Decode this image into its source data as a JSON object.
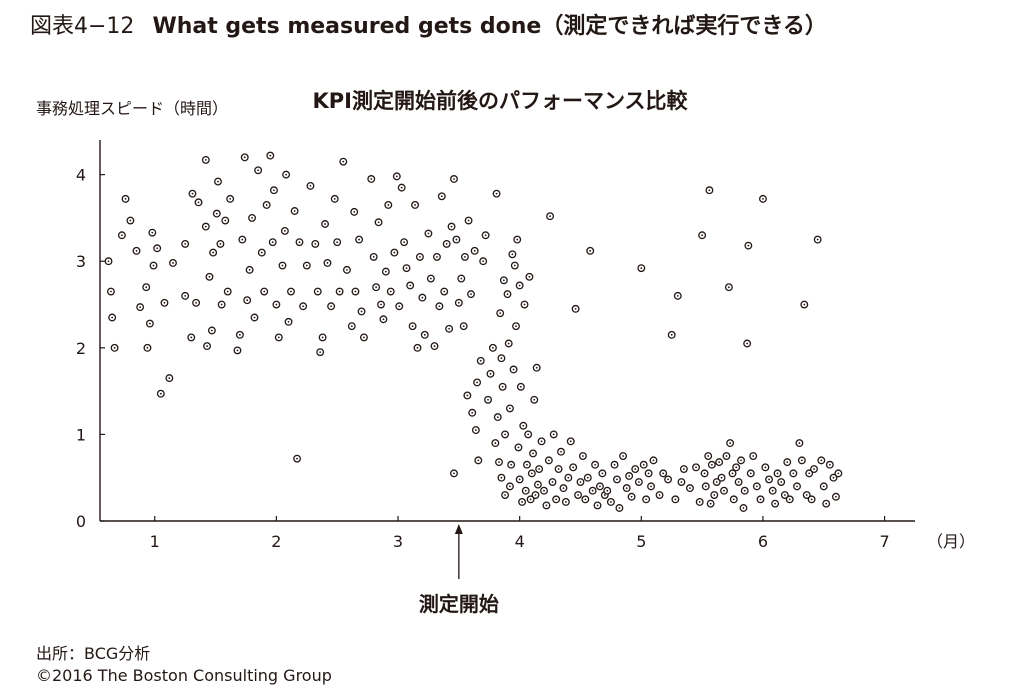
{
  "figure": {
    "number": "図表4−12",
    "title": "What gets measured gets done（測定できれば実行できる）"
  },
  "source": {
    "line1": "出所：BCG分析",
    "line2": "©2016 The Boston Consulting Group"
  },
  "chart_data": {
    "type": "scatter",
    "title": "KPI測定開始前後のパフォーマンス比較",
    "ylabel": "事務処理スピード（時間）",
    "xunit": "（月）",
    "xlim": [
      0.55,
      7.25
    ],
    "ylim": [
      0,
      4.4
    ],
    "xticks": [
      1,
      2,
      3,
      4,
      5,
      6,
      7
    ],
    "yticks": [
      0,
      1,
      2,
      3,
      4
    ],
    "grid": false,
    "annotation": {
      "label": "測定開始",
      "x": 3.5
    },
    "marker_color": "#231815",
    "points": [
      [
        0.62,
        3.0
      ],
      [
        0.64,
        2.65
      ],
      [
        0.65,
        2.35
      ],
      [
        0.67,
        2.0
      ],
      [
        0.73,
        3.3
      ],
      [
        0.76,
        3.72
      ],
      [
        0.8,
        3.47
      ],
      [
        0.85,
        3.12
      ],
      [
        0.88,
        2.47
      ],
      [
        0.93,
        2.7
      ],
      [
        0.94,
        2.0
      ],
      [
        0.96,
        2.28
      ],
      [
        0.98,
        3.33
      ],
      [
        0.99,
        2.95
      ],
      [
        1.02,
        3.15
      ],
      [
        1.05,
        1.47
      ],
      [
        1.08,
        2.52
      ],
      [
        1.12,
        1.65
      ],
      [
        1.15,
        2.98
      ],
      [
        1.25,
        3.2
      ],
      [
        1.25,
        2.6
      ],
      [
        1.3,
        2.12
      ],
      [
        1.31,
        3.78
      ],
      [
        1.34,
        2.52
      ],
      [
        1.36,
        3.68
      ],
      [
        1.42,
        4.17
      ],
      [
        1.42,
        3.4
      ],
      [
        1.43,
        2.02
      ],
      [
        1.45,
        2.82
      ],
      [
        1.47,
        2.2
      ],
      [
        1.48,
        3.1
      ],
      [
        1.51,
        3.55
      ],
      [
        1.52,
        3.92
      ],
      [
        1.54,
        3.2
      ],
      [
        1.55,
        2.5
      ],
      [
        1.58,
        3.47
      ],
      [
        1.6,
        2.65
      ],
      [
        1.62,
        3.72
      ],
      [
        1.68,
        1.97
      ],
      [
        1.7,
        2.15
      ],
      [
        1.72,
        3.25
      ],
      [
        1.74,
        4.2
      ],
      [
        1.76,
        2.55
      ],
      [
        1.78,
        2.9
      ],
      [
        1.8,
        3.5
      ],
      [
        1.82,
        2.35
      ],
      [
        1.85,
        4.05
      ],
      [
        1.88,
        3.1
      ],
      [
        1.9,
        2.65
      ],
      [
        1.92,
        3.65
      ],
      [
        1.95,
        4.22
      ],
      [
        1.97,
        3.22
      ],
      [
        1.98,
        3.82
      ],
      [
        2.0,
        2.5
      ],
      [
        2.02,
        2.12
      ],
      [
        2.05,
        2.95
      ],
      [
        2.07,
        3.35
      ],
      [
        2.08,
        4.0
      ],
      [
        2.1,
        2.3
      ],
      [
        2.12,
        2.65
      ],
      [
        2.15,
        3.58
      ],
      [
        2.17,
        0.72
      ],
      [
        2.19,
        3.22
      ],
      [
        2.22,
        2.48
      ],
      [
        2.25,
        2.95
      ],
      [
        2.28,
        3.87
      ],
      [
        2.32,
        3.2
      ],
      [
        2.34,
        2.65
      ],
      [
        2.36,
        1.95
      ],
      [
        2.38,
        2.12
      ],
      [
        2.4,
        3.43
      ],
      [
        2.42,
        2.98
      ],
      [
        2.45,
        2.48
      ],
      [
        2.48,
        3.72
      ],
      [
        2.5,
        3.22
      ],
      [
        2.52,
        2.65
      ],
      [
        2.55,
        4.15
      ],
      [
        2.58,
        2.9
      ],
      [
        2.62,
        2.25
      ],
      [
        2.64,
        3.57
      ],
      [
        2.65,
        2.65
      ],
      [
        2.68,
        3.25
      ],
      [
        2.7,
        2.42
      ],
      [
        2.72,
        2.12
      ],
      [
        2.78,
        3.95
      ],
      [
        2.8,
        3.05
      ],
      [
        2.82,
        2.7
      ],
      [
        2.84,
        3.45
      ],
      [
        2.86,
        2.5
      ],
      [
        2.88,
        2.33
      ],
      [
        2.9,
        2.88
      ],
      [
        2.92,
        3.65
      ],
      [
        2.94,
        2.65
      ],
      [
        2.97,
        3.1
      ],
      [
        2.99,
        3.98
      ],
      [
        3.01,
        2.48
      ],
      [
        3.03,
        3.85
      ],
      [
        3.05,
        3.22
      ],
      [
        3.07,
        2.92
      ],
      [
        3.1,
        2.72
      ],
      [
        3.12,
        2.25
      ],
      [
        3.14,
        3.65
      ],
      [
        3.16,
        2.0
      ],
      [
        3.18,
        3.05
      ],
      [
        3.2,
        2.58
      ],
      [
        3.22,
        2.15
      ],
      [
        3.25,
        3.32
      ],
      [
        3.27,
        2.8
      ],
      [
        3.3,
        2.02
      ],
      [
        3.32,
        3.05
      ],
      [
        3.34,
        2.48
      ],
      [
        3.36,
        3.75
      ],
      [
        3.38,
        2.65
      ],
      [
        3.4,
        3.2
      ],
      [
        3.42,
        2.22
      ],
      [
        3.44,
        3.4
      ],
      [
        3.46,
        3.95
      ],
      [
        3.48,
        3.25
      ],
      [
        3.5,
        2.52
      ],
      [
        3.52,
        2.8
      ],
      [
        3.54,
        2.25
      ],
      [
        3.46,
        0.55
      ],
      [
        3.55,
        3.05
      ],
      [
        3.57,
        1.45
      ],
      [
        3.58,
        3.47
      ],
      [
        3.6,
        2.62
      ],
      [
        3.61,
        1.25
      ],
      [
        3.63,
        3.12
      ],
      [
        3.64,
        1.05
      ],
      [
        3.65,
        1.6
      ],
      [
        3.66,
        0.7
      ],
      [
        3.68,
        1.85
      ],
      [
        3.7,
        3.0
      ],
      [
        3.72,
        3.3
      ],
      [
        3.74,
        1.4
      ],
      [
        3.76,
        1.7
      ],
      [
        3.78,
        2.0
      ],
      [
        3.8,
        0.9
      ],
      [
        3.81,
        3.78
      ],
      [
        3.82,
        1.2
      ],
      [
        3.83,
        0.68
      ],
      [
        3.84,
        2.4
      ],
      [
        3.85,
        1.88
      ],
      [
        3.85,
        0.5
      ],
      [
        3.86,
        1.55
      ],
      [
        3.87,
        2.78
      ],
      [
        3.88,
        0.3
      ],
      [
        3.88,
        1.0
      ],
      [
        3.9,
        2.62
      ],
      [
        3.91,
        2.05
      ],
      [
        3.92,
        0.4
      ],
      [
        3.92,
        1.3
      ],
      [
        3.93,
        0.65
      ],
      [
        3.94,
        3.08
      ],
      [
        3.95,
        1.75
      ],
      [
        3.96,
        2.95
      ],
      [
        3.97,
        2.25
      ],
      [
        3.98,
        3.25
      ],
      [
        3.99,
        0.85
      ],
      [
        4.0,
        2.72
      ],
      [
        4.0,
        0.48
      ],
      [
        4.01,
        1.55
      ],
      [
        4.02,
        0.22
      ],
      [
        4.03,
        1.1
      ],
      [
        4.04,
        2.5
      ],
      [
        4.05,
        0.35
      ],
      [
        4.06,
        0.65
      ],
      [
        4.07,
        1.0
      ],
      [
        4.08,
        2.82
      ],
      [
        4.09,
        0.25
      ],
      [
        4.1,
        0.55
      ],
      [
        4.11,
        0.78
      ],
      [
        4.12,
        1.4
      ],
      [
        4.13,
        0.3
      ],
      [
        4.14,
        1.77
      ],
      [
        4.15,
        0.42
      ],
      [
        4.16,
        0.6
      ],
      [
        4.18,
        0.92
      ],
      [
        4.2,
        0.35
      ],
      [
        4.22,
        0.18
      ],
      [
        4.24,
        0.7
      ],
      [
        4.25,
        3.52
      ],
      [
        4.27,
        0.45
      ],
      [
        4.28,
        1.0
      ],
      [
        4.3,
        0.25
      ],
      [
        4.32,
        0.6
      ],
      [
        4.34,
        0.8
      ],
      [
        4.36,
        0.38
      ],
      [
        4.38,
        0.22
      ],
      [
        4.4,
        0.5
      ],
      [
        4.42,
        0.92
      ],
      [
        4.44,
        0.62
      ],
      [
        4.46,
        2.45
      ],
      [
        4.48,
        0.3
      ],
      [
        4.5,
        0.45
      ],
      [
        4.52,
        0.75
      ],
      [
        4.54,
        0.25
      ],
      [
        4.56,
        0.5
      ],
      [
        4.58,
        3.12
      ],
      [
        4.6,
        0.35
      ],
      [
        4.62,
        0.65
      ],
      [
        4.64,
        0.18
      ],
      [
        4.66,
        0.4
      ],
      [
        4.68,
        0.55
      ],
      [
        4.7,
        0.3
      ],
      [
        4.72,
        0.35
      ],
      [
        4.75,
        0.22
      ],
      [
        4.78,
        0.65
      ],
      [
        4.8,
        0.48
      ],
      [
        4.82,
        0.15
      ],
      [
        4.85,
        0.75
      ],
      [
        4.88,
        0.38
      ],
      [
        4.9,
        0.52
      ],
      [
        4.92,
        0.28
      ],
      [
        4.95,
        0.6
      ],
      [
        4.98,
        0.45
      ],
      [
        5.0,
        2.92
      ],
      [
        5.02,
        0.65
      ],
      [
        5.04,
        0.25
      ],
      [
        5.06,
        0.55
      ],
      [
        5.08,
        0.4
      ],
      [
        5.1,
        0.7
      ],
      [
        5.15,
        0.3
      ],
      [
        5.18,
        0.55
      ],
      [
        5.22,
        0.48
      ],
      [
        5.25,
        2.15
      ],
      [
        5.28,
        0.25
      ],
      [
        5.3,
        2.6
      ],
      [
        5.33,
        0.45
      ],
      [
        5.35,
        0.6
      ],
      [
        5.4,
        0.38
      ],
      [
        5.45,
        0.62
      ],
      [
        5.48,
        0.22
      ],
      [
        5.5,
        3.3
      ],
      [
        5.52,
        0.55
      ],
      [
        5.53,
        0.4
      ],
      [
        5.55,
        0.75
      ],
      [
        5.56,
        3.82
      ],
      [
        5.57,
        0.2
      ],
      [
        5.58,
        0.65
      ],
      [
        5.6,
        0.3
      ],
      [
        5.62,
        0.45
      ],
      [
        5.64,
        0.68
      ],
      [
        5.66,
        0.5
      ],
      [
        5.68,
        0.35
      ],
      [
        5.7,
        0.75
      ],
      [
        5.72,
        2.7
      ],
      [
        5.73,
        0.9
      ],
      [
        5.75,
        0.55
      ],
      [
        5.76,
        0.25
      ],
      [
        5.78,
        0.62
      ],
      [
        5.8,
        0.45
      ],
      [
        5.82,
        0.7
      ],
      [
        5.84,
        0.15
      ],
      [
        5.85,
        0.35
      ],
      [
        5.87,
        2.05
      ],
      [
        5.88,
        3.18
      ],
      [
        5.9,
        0.55
      ],
      [
        5.92,
        0.75
      ],
      [
        5.95,
        0.4
      ],
      [
        5.98,
        0.25
      ],
      [
        6.0,
        3.72
      ],
      [
        6.02,
        0.62
      ],
      [
        6.05,
        0.48
      ],
      [
        6.08,
        0.35
      ],
      [
        6.1,
        0.2
      ],
      [
        6.12,
        0.55
      ],
      [
        6.15,
        0.45
      ],
      [
        6.18,
        0.3
      ],
      [
        6.2,
        0.68
      ],
      [
        6.22,
        0.25
      ],
      [
        6.25,
        0.55
      ],
      [
        6.28,
        0.4
      ],
      [
        6.3,
        0.9
      ],
      [
        6.32,
        0.7
      ],
      [
        6.34,
        2.5
      ],
      [
        6.36,
        0.3
      ],
      [
        6.38,
        0.55
      ],
      [
        6.4,
        0.25
      ],
      [
        6.42,
        0.6
      ],
      [
        6.45,
        3.25
      ],
      [
        6.48,
        0.7
      ],
      [
        6.5,
        0.4
      ],
      [
        6.52,
        0.2
      ],
      [
        6.55,
        0.65
      ],
      [
        6.58,
        0.5
      ],
      [
        6.6,
        0.28
      ],
      [
        6.62,
        0.55
      ]
    ]
  }
}
